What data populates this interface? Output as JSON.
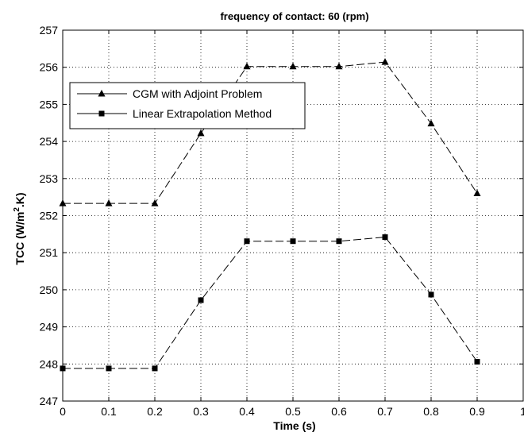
{
  "chart_data": {
    "type": "line",
    "title": "frequency of contact: 60 (rpm)",
    "xlabel": "Time (s)",
    "ylabel_prefix": "TCC (W/m",
    "ylabel_sup": "2",
    "ylabel_suffix": ".K)",
    "xlim": [
      0,
      1
    ],
    "ylim": [
      247,
      257
    ],
    "x_ticks": [
      "0",
      "0.1",
      "0.2",
      "0.3",
      "0.4",
      "0.5",
      "0.6",
      "0.7",
      "0.8",
      "0.9",
      "1"
    ],
    "y_ticks": [
      "247",
      "248",
      "249",
      "250",
      "251",
      "252",
      "253",
      "254",
      "255",
      "256",
      "257"
    ],
    "grid": true,
    "legend_position": "upper-left",
    "x": [
      0,
      0.1,
      0.2,
      0.3,
      0.4,
      0.5,
      0.6,
      0.7,
      0.8,
      0.9
    ],
    "series": [
      {
        "name": "CGM with Adjoint Problem",
        "marker": "triangle",
        "color": "#000000",
        "values": [
          252.33,
          252.33,
          252.33,
          254.22,
          256.02,
          256.02,
          256.02,
          256.14,
          254.48,
          252.6
        ]
      },
      {
        "name": "Linear Extrapolation Method",
        "marker": "square",
        "color": "#000000",
        "values": [
          247.88,
          247.88,
          247.88,
          249.72,
          251.31,
          251.31,
          251.31,
          251.42,
          249.87,
          248.06
        ]
      }
    ]
  }
}
